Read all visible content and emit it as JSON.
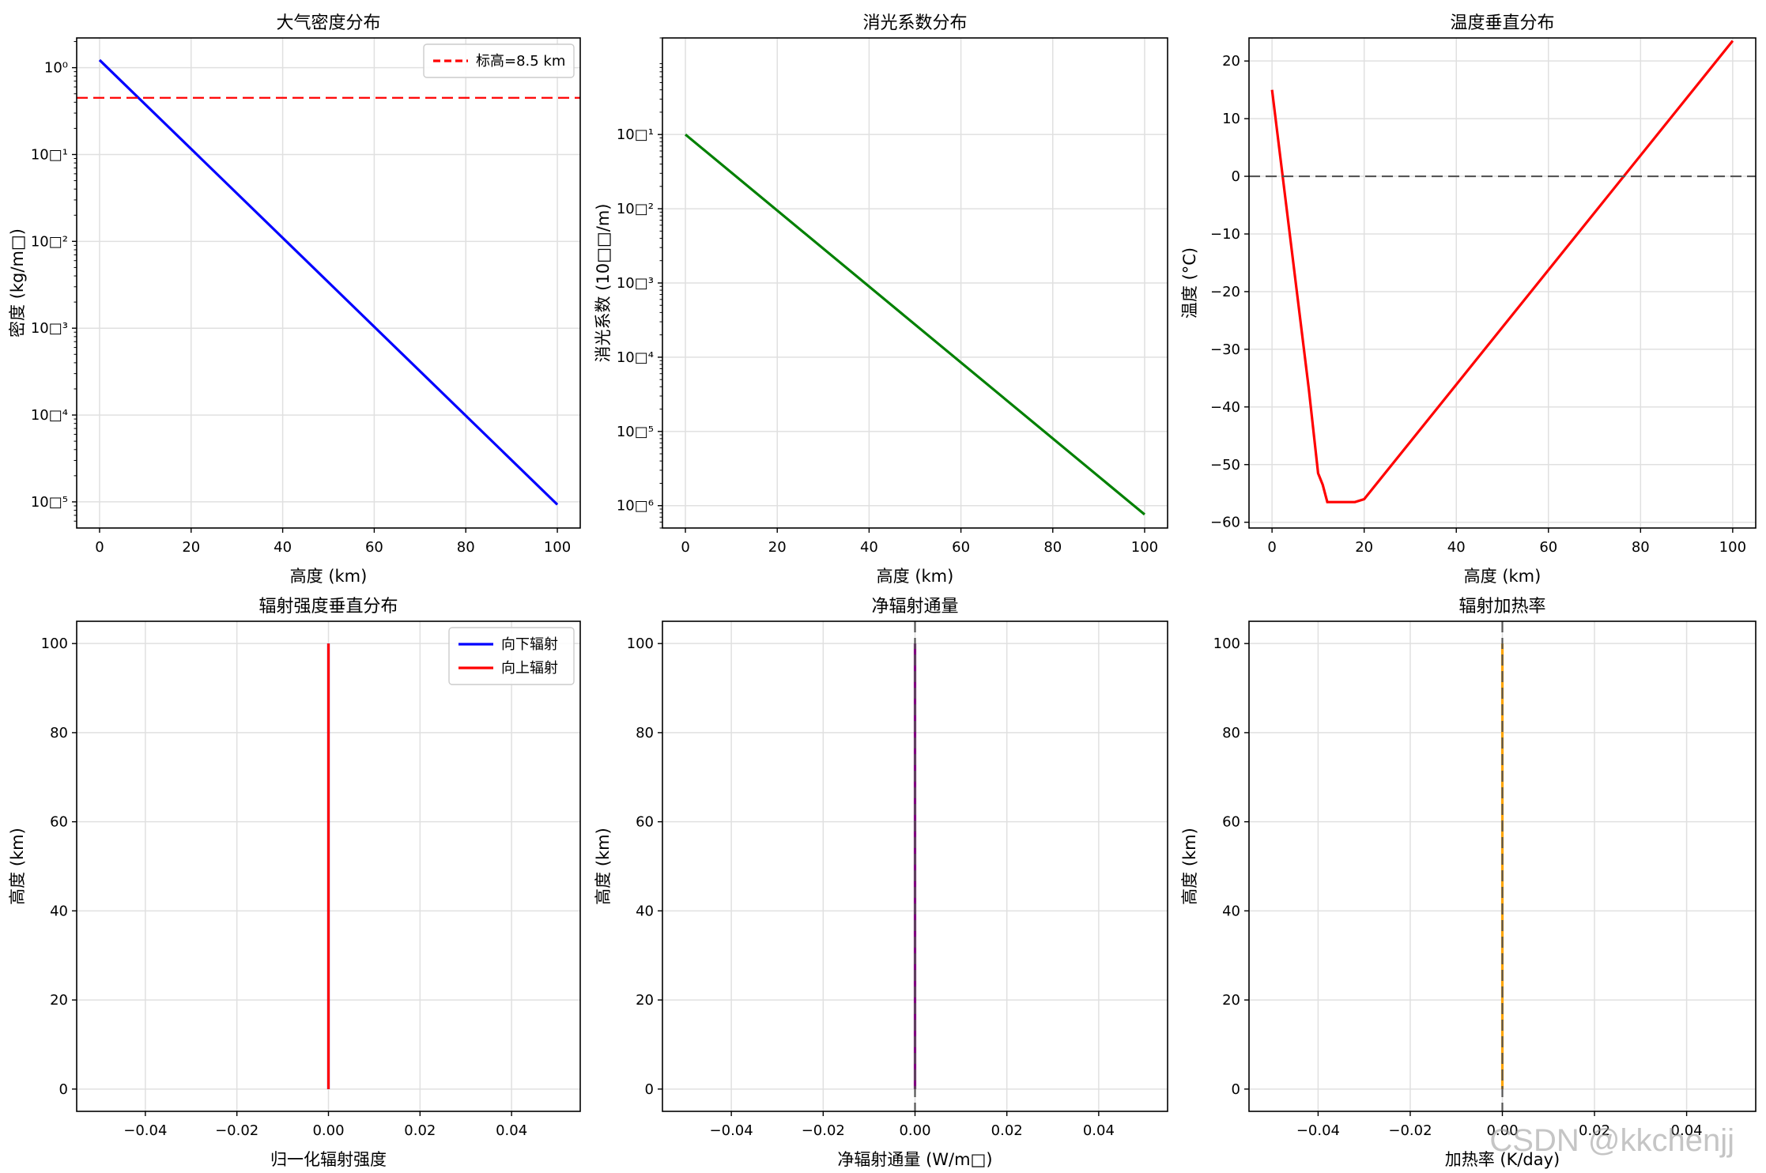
{
  "watermark": "CSDN @kkchenjj",
  "chart_data": [
    {
      "type": "line",
      "title": "大气密度分布",
      "xlabel": "高度 (km)",
      "ylabel": "密度 (kg/m□)",
      "yscale": "log",
      "xlim": [
        -5,
        105
      ],
      "ylim": [
        5e-06,
        2.2
      ],
      "xticks": [
        0,
        20,
        40,
        60,
        80,
        100
      ],
      "xtick_labels": [
        "0",
        "20",
        "40",
        "60",
        "80",
        "100"
      ],
      "yticks": [
        1,
        0.1,
        0.01,
        0.001,
        0.0001,
        1e-05
      ],
      "ytick_labels": [
        "10⁰",
        "10□¹",
        "10□²",
        "10□³",
        "10□⁴",
        "10□⁵"
      ],
      "grid": true,
      "legend": "top-right",
      "series": [
        {
          "x": [
            0,
            100
          ],
          "y": [
            1.225,
            9.3e-06
          ],
          "color": "#0000ff",
          "style": "solid"
        },
        {
          "name": "标高=8.5 km",
          "hline": 0.45,
          "color": "#ff0000",
          "style": "dashed"
        }
      ]
    },
    {
      "type": "line",
      "title": "消光系数分布",
      "xlabel": "高度 (km)",
      "ylabel": "消光系数 (10□□/m)",
      "yscale": "log",
      "xlim": [
        -5,
        105
      ],
      "ylim": [
        5e-07,
        2
      ],
      "xticks": [
        0,
        20,
        40,
        60,
        80,
        100
      ],
      "xtick_labels": [
        "0",
        "20",
        "40",
        "60",
        "80",
        "100"
      ],
      "yticks": [
        0.1,
        0.01,
        0.001,
        0.0001,
        1e-05,
        1e-06
      ],
      "ytick_labels": [
        "10□¹",
        "10□²",
        "10□³",
        "10□⁴",
        "10□⁵",
        "10□⁶"
      ],
      "grid": true,
      "series": [
        {
          "x": [
            0,
            100
          ],
          "y": [
            0.1,
            7.6e-07
          ],
          "color": "#008000",
          "style": "solid"
        }
      ]
    },
    {
      "type": "line",
      "title": "温度垂直分布",
      "xlabel": "高度 (km)",
      "ylabel": "温度 (°C)",
      "xlim": [
        -5,
        105
      ],
      "ylim": [
        -61,
        24
      ],
      "xticks": [
        0,
        20,
        40,
        60,
        80,
        100
      ],
      "xtick_labels": [
        "0",
        "20",
        "40",
        "60",
        "80",
        "100"
      ],
      "yticks": [
        20,
        10,
        0,
        -10,
        -20,
        -30,
        -40,
        -50,
        -60
      ],
      "ytick_labels": [
        "20",
        "10",
        "0",
        "−10",
        "−20",
        "−30",
        "−40",
        "−50",
        "−60"
      ],
      "grid": true,
      "series": [
        {
          "x": [
            0,
            2,
            4,
            6,
            8,
            10,
            11,
            12,
            14,
            16,
            18,
            20,
            100
          ],
          "y": [
            15,
            2,
            -11,
            -24,
            -37,
            -51.5,
            -53.5,
            -56.5,
            -56.5,
            -56.5,
            -56.5,
            -56,
            23.5
          ],
          "color": "#ff0000",
          "style": "solid"
        },
        {
          "hline": 0,
          "color": "#555555",
          "style": "dashed"
        }
      ]
    },
    {
      "type": "line",
      "title": "辐射强度垂直分布",
      "xlabel": "归一化辐射强度",
      "ylabel": "高度 (km)",
      "xlim": [
        -0.055,
        0.055
      ],
      "ylim": [
        -5,
        105
      ],
      "xticks": [
        -0.04,
        -0.02,
        0,
        0.02,
        0.04
      ],
      "xtick_labels": [
        "−0.04",
        "−0.02",
        "0.00",
        "0.02",
        "0.04"
      ],
      "yticks": [
        0,
        20,
        40,
        60,
        80,
        100
      ],
      "ytick_labels": [
        "0",
        "20",
        "40",
        "60",
        "80",
        "100"
      ],
      "grid": true,
      "legend": "top-right",
      "series": [
        {
          "name": "向下辐射",
          "x": [
            0,
            0
          ],
          "y": [
            0,
            100
          ],
          "color": "#0000ff",
          "style": "solid"
        },
        {
          "name": "向上辐射",
          "x": [
            0,
            0
          ],
          "y": [
            0,
            100
          ],
          "color": "#ff0000",
          "style": "solid"
        }
      ]
    },
    {
      "type": "line",
      "title": "净辐射通量",
      "xlabel": "净辐射通量 (W/m□)",
      "ylabel": "高度 (km)",
      "xlim": [
        -0.055,
        0.055
      ],
      "ylim": [
        -5,
        105
      ],
      "xticks": [
        -0.04,
        -0.02,
        0,
        0.02,
        0.04
      ],
      "xtick_labels": [
        "−0.04",
        "−0.02",
        "0.00",
        "0.02",
        "0.04"
      ],
      "yticks": [
        0,
        20,
        40,
        60,
        80,
        100
      ],
      "ytick_labels": [
        "0",
        "20",
        "40",
        "60",
        "80",
        "100"
      ],
      "grid": true,
      "series": [
        {
          "x": [
            0,
            0
          ],
          "y": [
            0,
            100
          ],
          "color": "#800080",
          "style": "solid"
        },
        {
          "vline": 0,
          "color": "#555555",
          "style": "dashed"
        }
      ]
    },
    {
      "type": "line",
      "title": "辐射加热率",
      "xlabel": "加热率 (K/day)",
      "ylabel": "高度 (km)",
      "xlim": [
        -0.055,
        0.055
      ],
      "ylim": [
        -5,
        105
      ],
      "xticks": [
        -0.04,
        -0.02,
        0,
        0.02,
        0.04
      ],
      "xtick_labels": [
        "−0.04",
        "−0.02",
        "0.00",
        "0.02",
        "0.04"
      ],
      "yticks": [
        0,
        20,
        40,
        60,
        80,
        100
      ],
      "ytick_labels": [
        "0",
        "20",
        "40",
        "60",
        "80",
        "100"
      ],
      "grid": true,
      "series": [
        {
          "x": [
            0,
            0
          ],
          "y": [
            0,
            100
          ],
          "color": "#ffa500",
          "style": "solid"
        },
        {
          "vline": 0,
          "color": "#555555",
          "style": "dashed"
        }
      ]
    }
  ]
}
